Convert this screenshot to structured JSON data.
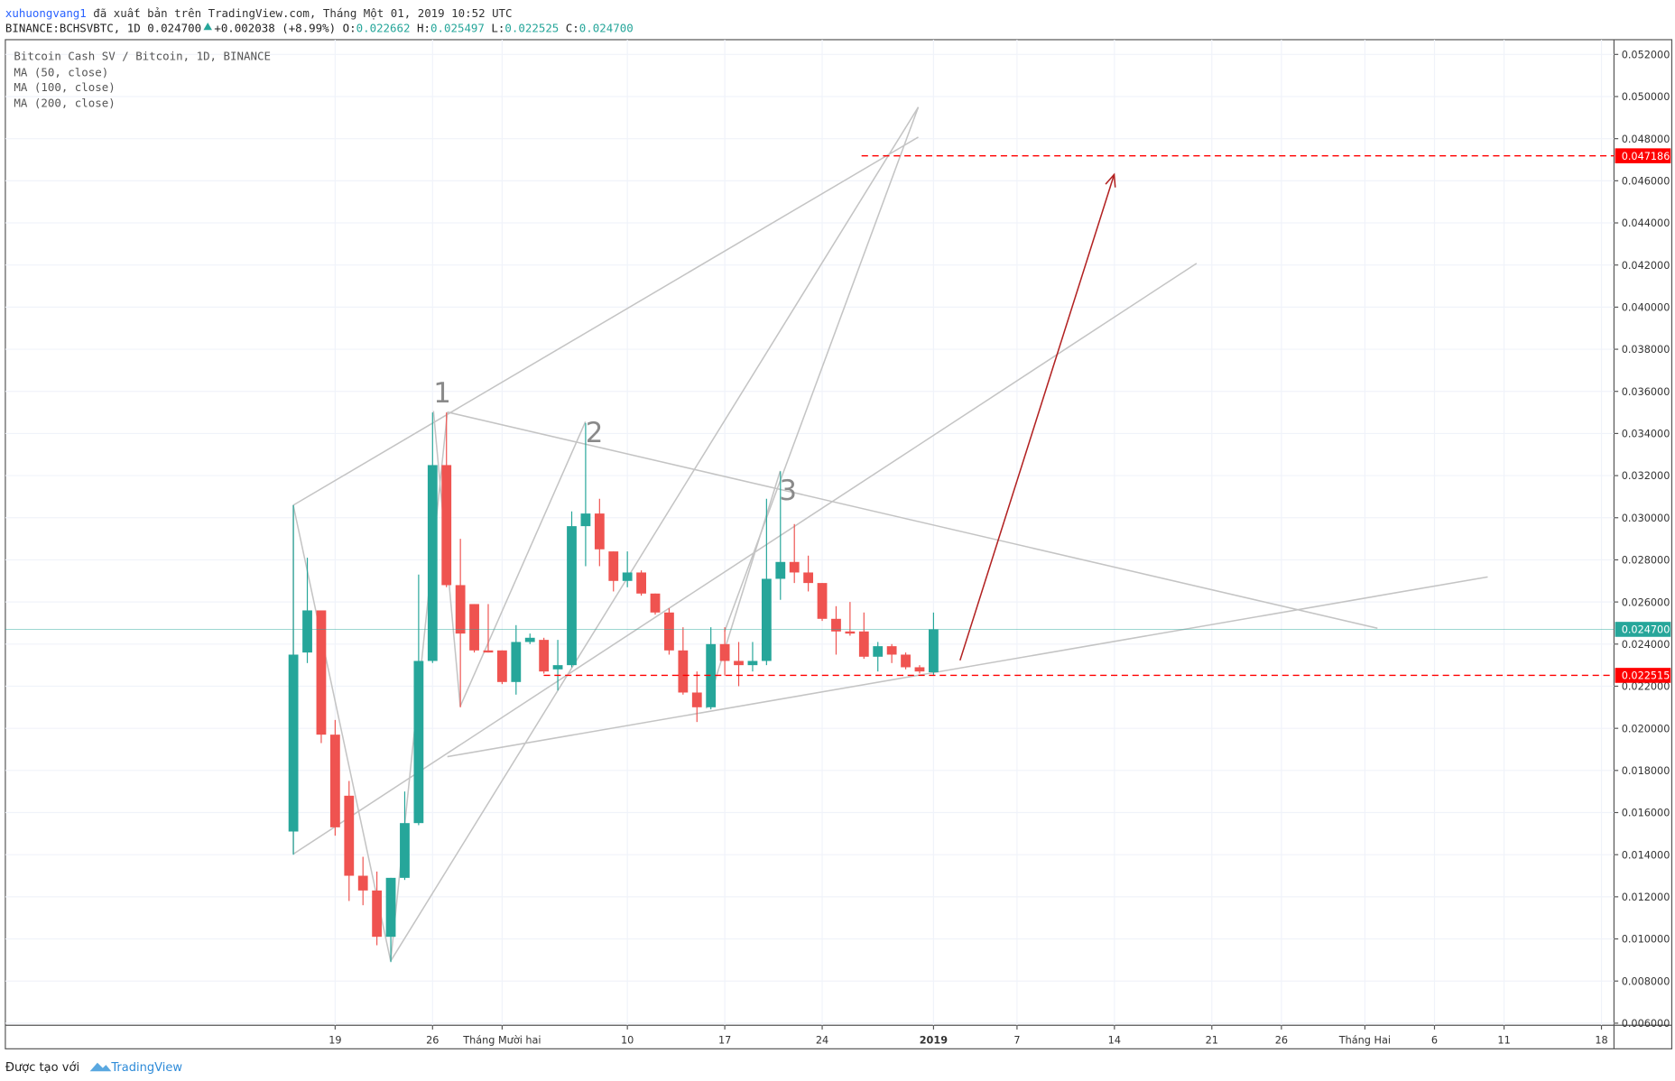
{
  "header": {
    "author": "xuhuongvang1",
    "published": "đã xuất bản trên TradingView.com, Tháng Một 01, 2019 10:52 UTC",
    "symbol": "BINANCE:BCHSVBTC, 1D",
    "last": "0.024700",
    "change": "+0.002038 (+8.99%)",
    "ohlc": [
      {
        "label": "O:",
        "value": "0.022662"
      },
      {
        "label": "H:",
        "value": "0.025497"
      },
      {
        "label": "L:",
        "value": "0.022525"
      },
      {
        "label": "C:",
        "value": "0.024700"
      }
    ]
  },
  "legend": [
    "Bitcoin Cash SV / Bitcoin, 1D, BINANCE",
    "MA (50, close)",
    "MA (100, close)",
    "MA (200, close)"
  ],
  "chart_data": {
    "type": "candlestick",
    "up_color": "#26a69a",
    "down_color": "#ef5350",
    "grid": true,
    "x": [
      0,
      1,
      2,
      3,
      4,
      5,
      6,
      7,
      8,
      9,
      10,
      11,
      12,
      13,
      14,
      15,
      16,
      17,
      18,
      19,
      20,
      21,
      22,
      23,
      24,
      25,
      26,
      27,
      28,
      29,
      30,
      31,
      32,
      33,
      34,
      35,
      36,
      37,
      38,
      39,
      40,
      41,
      42,
      43,
      44,
      45,
      46
    ],
    "open": [
      0.0151,
      0.0236,
      0.0256,
      0.0197,
      0.0168,
      0.013,
      0.0123,
      0.0101,
      0.0129,
      0.0155,
      0.0232,
      0.0325,
      0.0268,
      0.0259,
      0.0237,
      0.0237,
      0.0222,
      0.0241,
      0.0242,
      0.0228,
      0.023,
      0.0296,
      0.0302,
      0.0284,
      0.027,
      0.0274,
      0.0264,
      0.0255,
      0.0237,
      0.0217,
      0.021,
      0.024,
      0.0232,
      0.023,
      0.0232,
      0.0271,
      0.0279,
      0.0274,
      0.0269,
      0.0252,
      0.0246,
      0.0246,
      0.0234,
      0.0239,
      0.0235,
      0.0229,
      0.022662
    ],
    "high": [
      0.0306,
      0.0281,
      0.0256,
      0.0204,
      0.0175,
      0.0139,
      0.0132,
      0.0129,
      0.017,
      0.0273,
      0.035,
      0.035,
      0.029,
      0.0259,
      0.0259,
      0.0237,
      0.0249,
      0.0245,
      0.0243,
      0.0242,
      0.0303,
      0.0345,
      0.0309,
      0.0284,
      0.0284,
      0.0275,
      0.0264,
      0.0257,
      0.0248,
      0.0227,
      0.0248,
      0.0248,
      0.0241,
      0.0241,
      0.0309,
      0.0322,
      0.0297,
      0.0282,
      0.0269,
      0.0258,
      0.026,
      0.0255,
      0.0241,
      0.024,
      0.0236,
      0.023,
      0.025497
    ],
    "low": [
      0.014,
      0.0231,
      0.0193,
      0.0149,
      0.0118,
      0.0116,
      0.0097,
      0.0089,
      0.0128,
      0.0154,
      0.0231,
      0.0267,
      0.021,
      0.0236,
      0.0236,
      0.0221,
      0.0216,
      0.024,
      0.0226,
      0.0218,
      0.0229,
      0.0277,
      0.0277,
      0.0265,
      0.0267,
      0.0263,
      0.0254,
      0.0235,
      0.0216,
      0.0203,
      0.0209,
      0.0225,
      0.022,
      0.0227,
      0.023,
      0.0261,
      0.0269,
      0.0265,
      0.0251,
      0.0235,
      0.0244,
      0.0233,
      0.0227,
      0.0231,
      0.0228,
      0.0226,
      0.022525
    ],
    "close": [
      0.0235,
      0.0256,
      0.0197,
      0.0153,
      0.013,
      0.0123,
      0.0101,
      0.0129,
      0.0155,
      0.0232,
      0.0325,
      0.0268,
      0.0245,
      0.0237,
      0.0236,
      0.0222,
      0.0241,
      0.0243,
      0.0227,
      0.023,
      0.0296,
      0.0302,
      0.0285,
      0.027,
      0.0274,
      0.0264,
      0.0255,
      0.0237,
      0.0217,
      0.021,
      0.024,
      0.0232,
      0.023,
      0.0232,
      0.0271,
      0.0279,
      0.0274,
      0.0269,
      0.0252,
      0.0246,
      0.0245,
      0.0234,
      0.0239,
      0.0235,
      0.0229,
      0.0227,
      0.0247
    ],
    "xlim": [
      -20.7,
      94.9
    ],
    "xticks": [
      {
        "value": 3,
        "label": "19"
      },
      {
        "value": 10,
        "label": "26"
      },
      {
        "value": 15,
        "label": "Tháng Mười hai"
      },
      {
        "value": 24,
        "label": "10"
      },
      {
        "value": 31,
        "label": "17"
      },
      {
        "value": 38,
        "label": "24"
      },
      {
        "value": 46,
        "label": "2019"
      },
      {
        "value": 52,
        "label": "7"
      },
      {
        "value": 59,
        "label": "14"
      },
      {
        "value": 66,
        "label": "21"
      },
      {
        "value": 71,
        "label": "26"
      },
      {
        "value": 77,
        "label": "Tháng Hai"
      },
      {
        "value": 82,
        "label": "6"
      },
      {
        "value": 87,
        "label": "11"
      },
      {
        "value": 94,
        "label": "18"
      }
    ],
    "ylim": [
      0.0059,
      0.0527
    ],
    "yticks": [
      {
        "value": 0.006,
        "label": "0.006000"
      },
      {
        "value": 0.008,
        "label": "0.008000"
      },
      {
        "value": 0.01,
        "label": "0.010000"
      },
      {
        "value": 0.012,
        "label": "0.012000"
      },
      {
        "value": 0.014,
        "label": "0.014000"
      },
      {
        "value": 0.016,
        "label": "0.016000"
      },
      {
        "value": 0.018,
        "label": "0.018000"
      },
      {
        "value": 0.02,
        "label": "0.020000"
      },
      {
        "value": 0.022,
        "label": "0.022000"
      },
      {
        "value": 0.024,
        "label": "0.024000"
      },
      {
        "value": 0.026,
        "label": "0.026000"
      },
      {
        "value": 0.028,
        "label": "0.028000"
      },
      {
        "value": 0.03,
        "label": "0.030000"
      },
      {
        "value": 0.032,
        "label": "0.032000"
      },
      {
        "value": 0.034,
        "label": "0.034000"
      },
      {
        "value": 0.036,
        "label": "0.036000"
      },
      {
        "value": 0.038,
        "label": "0.038000"
      },
      {
        "value": 0.04,
        "label": "0.040000"
      },
      {
        "value": 0.042,
        "label": "0.042000"
      },
      {
        "value": 0.044,
        "label": "0.044000"
      },
      {
        "value": 0.046,
        "label": "0.046000"
      },
      {
        "value": 0.048,
        "label": "0.048000"
      },
      {
        "value": 0.05,
        "label": "0.050000"
      },
      {
        "value": 0.052,
        "label": "0.052000"
      }
    ],
    "price_labels": [
      {
        "value": 0.047186,
        "label": "0.047186",
        "color": "#ff0000",
        "dashed": true
      },
      {
        "value": 0.0247,
        "label": "0.024700",
        "color": "#26a69a",
        "dashed": false
      },
      {
        "value": 0.022515,
        "label": "0.022515",
        "color": "#ff0000",
        "dashed": true
      }
    ],
    "annotations": [
      "1",
      "2",
      "3"
    ]
  },
  "footer": {
    "made_with": "Được tạo với",
    "brand": "TradingView"
  }
}
